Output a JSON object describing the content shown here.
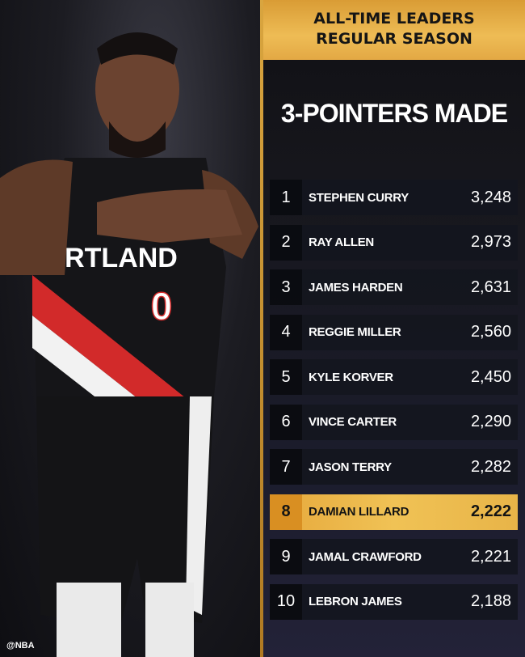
{
  "header": {
    "line1": "ALL-TIME LEADERS",
    "line2": "REGULAR SEASON"
  },
  "title": "3-POINTERS MADE",
  "jersey": {
    "text": "RTLAND",
    "number": "0"
  },
  "watermark": "@NBA",
  "accent": "#eebc55",
  "leaders": [
    {
      "rank": "1",
      "name": "STEPHEN CURRY",
      "value": "3,248"
    },
    {
      "rank": "2",
      "name": "RAY ALLEN",
      "value": "2,973"
    },
    {
      "rank": "3",
      "name": "JAMES HARDEN",
      "value": "2,631"
    },
    {
      "rank": "4",
      "name": "REGGIE MILLER",
      "value": "2,560"
    },
    {
      "rank": "5",
      "name": "KYLE KORVER",
      "value": "2,450"
    },
    {
      "rank": "6",
      "name": "VINCE CARTER",
      "value": "2,290"
    },
    {
      "rank": "7",
      "name": "JASON TERRY",
      "value": "2,282"
    },
    {
      "rank": "8",
      "name": "DAMIAN LILLARD",
      "value": "2,222",
      "highlighted": true
    },
    {
      "rank": "9",
      "name": "JAMAL CRAWFORD",
      "value": "2,221"
    },
    {
      "rank": "10",
      "name": "LEBRON JAMES",
      "value": "2,188"
    }
  ]
}
